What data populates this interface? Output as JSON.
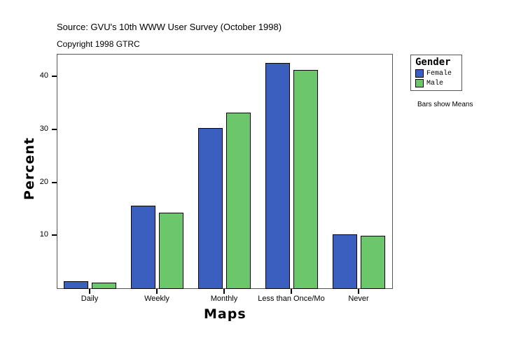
{
  "header": {
    "source": "Source: GVU's 10th WWW User Survey (October 1998)",
    "copyright": "Copyright 1998 GTRC"
  },
  "legend": {
    "title": "Gender",
    "items": [
      {
        "label": "Female",
        "color": "#3a5fbf"
      },
      {
        "label": "Male",
        "color": "#6cc66c"
      }
    ]
  },
  "note": "Bars show Means",
  "axes": {
    "ylabel": "Percent",
    "xlabel": "Maps",
    "yticks": [
      "10",
      "20",
      "30",
      "40"
    ]
  },
  "chart_data": {
    "type": "bar",
    "title": "Source: GVU's 10th WWW User Survey (October 1998)",
    "subtitle": "Copyright 1998 GTRC",
    "categories": [
      "Daily",
      "Weekly",
      "Monthly",
      "Less than Once/Mo",
      "Never"
    ],
    "series": [
      {
        "name": "Female",
        "color": "#3a5fbf",
        "values": [
          1.3,
          15.6,
          30.3,
          42.5,
          10.2
        ]
      },
      {
        "name": "Male",
        "color": "#6cc66c",
        "values": [
          1.1,
          14.3,
          33.2,
          41.2,
          9.9
        ]
      }
    ],
    "xlabel": "Maps",
    "ylabel": "Percent",
    "yticks": [
      10,
      20,
      30,
      40
    ],
    "ylim": [
      0,
      44.3
    ],
    "legend_title": "Gender",
    "legend_position": "right-top",
    "grid": false,
    "annotations": [
      "Bars show Means"
    ]
  }
}
